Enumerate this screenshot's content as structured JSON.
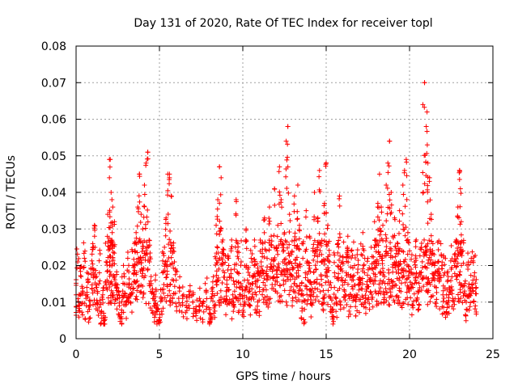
{
  "chart_data": {
    "type": "scatter",
    "title": "Day 131 of 2020, Rate Of TEC Index for receiver topl",
    "xlabel": "GPS time / hours",
    "ylabel": "ROTI / TECUs",
    "xlim": [
      0,
      25
    ],
    "ylim": [
      0,
      0.08
    ],
    "x_ticks": [
      0,
      5,
      10,
      15,
      20,
      25
    ],
    "x_tick_labels": [
      "0",
      "5",
      "10",
      "15",
      "20",
      "25"
    ],
    "y_ticks": [
      0,
      0.01,
      0.02,
      0.03,
      0.04,
      0.05,
      0.06,
      0.07,
      0.08
    ],
    "y_tick_labels": [
      "0",
      "0.01",
      "0.02",
      "0.03",
      "0.04",
      "0.05",
      "0.06",
      "0.07",
      "0.08"
    ],
    "grid": true,
    "marker": "+",
    "color": "#ff0000",
    "series": [
      {
        "name": "ROTI",
        "note": "dense point cloud, approx. 0.004-0.07 TECU/s, baseline ~0.01-0.02",
        "peaks": [
          {
            "x": 2.0,
            "y": 0.049
          },
          {
            "x": 3.8,
            "y": 0.045
          },
          {
            "x": 4.3,
            "y": 0.051
          },
          {
            "x": 5.6,
            "y": 0.045
          },
          {
            "x": 8.6,
            "y": 0.047
          },
          {
            "x": 12.7,
            "y": 0.058
          },
          {
            "x": 15.0,
            "y": 0.048
          },
          {
            "x": 18.8,
            "y": 0.054
          },
          {
            "x": 20.9,
            "y": 0.07
          },
          {
            "x": 23.0,
            "y": 0.046
          }
        ],
        "points": [
          [
            0.0,
            0.012
          ],
          [
            0.1,
            0.021
          ],
          [
            0.2,
            0.009
          ],
          [
            0.3,
            0.017
          ],
          [
            0.4,
            0.013
          ],
          [
            0.5,
            0.022
          ],
          [
            0.6,
            0.011
          ],
          [
            0.7,
            0.016
          ],
          [
            0.8,
            0.008
          ],
          [
            0.9,
            0.019
          ],
          [
            1.0,
            0.026
          ],
          [
            1.1,
            0.031
          ],
          [
            1.2,
            0.014
          ],
          [
            1.3,
            0.01
          ],
          [
            1.4,
            0.018
          ],
          [
            1.5,
            0.007
          ],
          [
            1.6,
            0.012
          ],
          [
            1.7,
            0.005
          ],
          [
            1.8,
            0.021
          ],
          [
            1.9,
            0.034
          ],
          [
            2.0,
            0.044
          ],
          [
            2.05,
            0.049
          ],
          [
            2.1,
            0.04
          ],
          [
            2.15,
            0.038
          ],
          [
            2.2,
            0.036
          ],
          [
            2.3,
            0.032
          ],
          [
            2.4,
            0.015
          ],
          [
            2.5,
            0.011
          ],
          [
            2.6,
            0.009
          ],
          [
            2.7,
            0.006
          ],
          [
            2.8,
            0.013
          ],
          [
            2.9,
            0.017
          ],
          [
            3.0,
            0.01
          ],
          [
            3.1,
            0.022
          ],
          [
            3.2,
            0.015
          ],
          [
            3.3,
            0.012
          ],
          [
            3.4,
            0.02
          ],
          [
            3.5,
            0.026
          ],
          [
            3.6,
            0.029
          ],
          [
            3.7,
            0.036
          ],
          [
            3.8,
            0.045
          ],
          [
            3.9,
            0.034
          ],
          [
            4.0,
            0.03
          ],
          [
            4.1,
            0.042
          ],
          [
            4.2,
            0.048
          ],
          [
            4.3,
            0.051
          ],
          [
            4.4,
            0.021
          ],
          [
            4.5,
            0.017
          ],
          [
            4.6,
            0.011
          ],
          [
            4.7,
            0.009
          ],
          [
            4.8,
            0.013
          ],
          [
            4.9,
            0.008
          ],
          [
            5.0,
            0.005
          ],
          [
            5.1,
            0.011
          ],
          [
            5.2,
            0.018
          ],
          [
            5.3,
            0.025
          ],
          [
            5.4,
            0.033
          ],
          [
            5.5,
            0.045
          ],
          [
            5.6,
            0.044
          ],
          [
            5.7,
            0.039
          ],
          [
            5.8,
            0.024
          ],
          [
            5.9,
            0.021
          ],
          [
            6.0,
            0.016
          ],
          [
            6.2,
            0.013
          ],
          [
            6.4,
            0.011
          ],
          [
            6.6,
            0.009
          ],
          [
            6.8,
            0.012
          ],
          [
            7.0,
            0.01
          ],
          [
            7.2,
            0.008
          ],
          [
            7.4,
            0.011
          ],
          [
            7.6,
            0.009
          ],
          [
            7.8,
            0.013
          ],
          [
            8.0,
            0.007
          ],
          [
            8.1,
            0.011
          ],
          [
            8.2,
            0.014
          ],
          [
            8.3,
            0.009
          ],
          [
            8.4,
            0.031
          ],
          [
            8.5,
            0.038
          ],
          [
            8.6,
            0.047
          ],
          [
            8.7,
            0.044
          ],
          [
            8.8,
            0.027
          ],
          [
            8.9,
            0.018
          ],
          [
            9.0,
            0.013
          ],
          [
            9.1,
            0.022
          ],
          [
            9.2,
            0.017
          ],
          [
            9.3,
            0.024
          ],
          [
            9.4,
            0.012
          ],
          [
            9.5,
            0.019
          ],
          [
            9.6,
            0.038
          ],
          [
            9.7,
            0.026
          ],
          [
            9.8,
            0.014
          ],
          [
            9.9,
            0.021
          ],
          [
            10.0,
            0.011
          ],
          [
            10.1,
            0.016
          ],
          [
            10.2,
            0.03
          ],
          [
            10.3,
            0.019
          ],
          [
            10.4,
            0.013
          ],
          [
            10.5,
            0.022
          ],
          [
            10.6,
            0.015
          ],
          [
            10.7,
            0.027
          ],
          [
            10.8,
            0.012
          ],
          [
            10.9,
            0.018
          ],
          [
            11.0,
            0.014
          ],
          [
            11.1,
            0.021
          ],
          [
            11.2,
            0.026
          ],
          [
            11.3,
            0.033
          ],
          [
            11.4,
            0.024
          ],
          [
            11.5,
            0.017
          ],
          [
            11.6,
            0.036
          ],
          [
            11.7,
            0.028
          ],
          [
            11.8,
            0.019
          ],
          [
            11.9,
            0.041
          ],
          [
            12.0,
            0.025
          ],
          [
            12.1,
            0.031
          ],
          [
            12.2,
            0.047
          ],
          [
            12.3,
            0.038
          ],
          [
            12.4,
            0.021
          ],
          [
            12.5,
            0.029
          ],
          [
            12.6,
            0.054
          ],
          [
            12.7,
            0.058
          ],
          [
            12.8,
            0.034
          ],
          [
            12.9,
            0.023
          ],
          [
            13.0,
            0.017
          ],
          [
            13.1,
            0.039
          ],
          [
            13.2,
            0.027
          ],
          [
            13.3,
            0.042
          ],
          [
            13.4,
            0.031
          ],
          [
            13.5,
            0.012
          ],
          [
            13.6,
            0.022
          ],
          [
            13.7,
            0.008
          ],
          [
            13.8,
            0.035
          ],
          [
            13.9,
            0.016
          ],
          [
            14.0,
            0.028
          ],
          [
            14.1,
            0.013
          ],
          [
            14.2,
            0.024
          ],
          [
            14.3,
            0.04
          ],
          [
            14.4,
            0.019
          ],
          [
            14.5,
            0.033
          ],
          [
            14.6,
            0.046
          ],
          [
            14.7,
            0.026
          ],
          [
            14.8,
            0.011
          ],
          [
            14.9,
            0.037
          ],
          [
            15.0,
            0.048
          ],
          [
            15.1,
            0.031
          ],
          [
            15.2,
            0.021
          ],
          [
            15.3,
            0.014
          ],
          [
            15.4,
            0.008
          ],
          [
            15.5,
            0.018
          ],
          [
            15.6,
            0.011
          ],
          [
            15.7,
            0.026
          ],
          [
            15.8,
            0.039
          ],
          [
            15.9,
            0.016
          ],
          [
            16.0,
            0.021
          ],
          [
            16.1,
            0.013
          ],
          [
            16.2,
            0.018
          ],
          [
            16.3,
            0.028
          ],
          [
            16.4,
            0.011
          ],
          [
            16.5,
            0.024
          ],
          [
            16.6,
            0.017
          ],
          [
            16.7,
            0.02
          ],
          [
            16.8,
            0.012
          ],
          [
            16.9,
            0.019
          ],
          [
            17.0,
            0.015
          ],
          [
            17.1,
            0.023
          ],
          [
            17.2,
            0.029
          ],
          [
            17.3,
            0.018
          ],
          [
            17.4,
            0.013
          ],
          [
            17.5,
            0.022
          ],
          [
            17.6,
            0.016
          ],
          [
            17.7,
            0.025
          ],
          [
            17.8,
            0.019
          ],
          [
            17.9,
            0.032
          ],
          [
            18.0,
            0.027
          ],
          [
            18.1,
            0.037
          ],
          [
            18.2,
            0.045
          ],
          [
            18.3,
            0.036
          ],
          [
            18.4,
            0.031
          ],
          [
            18.5,
            0.017
          ],
          [
            18.6,
            0.042
          ],
          [
            18.7,
            0.048
          ],
          [
            18.8,
            0.054
          ],
          [
            18.9,
            0.04
          ],
          [
            19.0,
            0.028
          ],
          [
            19.1,
            0.033
          ],
          [
            19.2,
            0.021
          ],
          [
            19.3,
            0.026
          ],
          [
            19.4,
            0.035
          ],
          [
            19.5,
            0.018
          ],
          [
            19.6,
            0.042
          ],
          [
            19.7,
            0.046
          ],
          [
            19.8,
            0.049
          ],
          [
            19.9,
            0.029
          ],
          [
            20.0,
            0.024
          ],
          [
            20.1,
            0.019
          ],
          [
            20.2,
            0.014
          ],
          [
            20.3,
            0.021
          ],
          [
            20.4,
            0.027
          ],
          [
            20.5,
            0.013
          ],
          [
            20.6,
            0.018
          ],
          [
            20.7,
            0.025
          ],
          [
            20.8,
            0.064
          ],
          [
            20.9,
            0.07
          ],
          [
            21.0,
            0.058
          ],
          [
            21.05,
            0.062
          ],
          [
            21.1,
            0.048
          ],
          [
            21.2,
            0.044
          ],
          [
            21.3,
            0.034
          ],
          [
            21.4,
            0.026
          ],
          [
            21.5,
            0.02
          ],
          [
            21.6,
            0.014
          ],
          [
            21.7,
            0.021
          ],
          [
            21.8,
            0.016
          ],
          [
            21.9,
            0.023
          ],
          [
            22.0,
            0.012
          ],
          [
            22.1,
            0.018
          ],
          [
            22.2,
            0.01
          ],
          [
            22.3,
            0.016
          ],
          [
            22.4,
            0.013
          ],
          [
            22.5,
            0.019
          ],
          [
            22.6,
            0.011
          ],
          [
            22.7,
            0.02
          ],
          [
            22.8,
            0.027
          ],
          [
            22.9,
            0.036
          ],
          [
            23.0,
            0.046
          ],
          [
            23.05,
            0.041
          ],
          [
            23.1,
            0.032
          ],
          [
            23.2,
            0.024
          ],
          [
            23.3,
            0.013
          ],
          [
            23.4,
            0.01
          ],
          [
            23.5,
            0.019
          ],
          [
            23.6,
            0.012
          ],
          [
            23.7,
            0.022
          ],
          [
            23.8,
            0.016
          ],
          [
            23.9,
            0.018
          ],
          [
            24.0,
            0.014
          ]
        ]
      }
    ]
  }
}
